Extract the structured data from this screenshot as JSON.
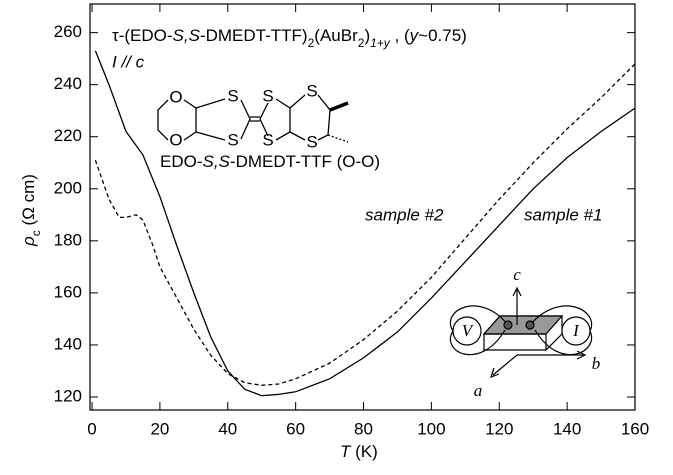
{
  "chart_data": {
    "type": "line",
    "title_parts": [
      "τ-(EDO-",
      "S,S",
      "-DMEDT-TTF)",
      "2",
      "(AuBr",
      "2",
      ")",
      "1+y",
      " , (",
      "y",
      "~0.75)"
    ],
    "annotation_current": "I // c",
    "molecule_label_parts": [
      "EDO-",
      "S,S",
      "-DMEDT-TTF (O-O)"
    ],
    "molecule_atoms": [
      "O",
      "O",
      "S",
      "S",
      "S",
      "S",
      "S",
      "S"
    ],
    "inset_labels": [
      "c",
      "V",
      "I",
      "a",
      "b"
    ],
    "y_label_parts": [
      "ρ",
      "c",
      " (Ω cm)"
    ],
    "x_label_parts": [
      "T",
      " (K)"
    ],
    "xlim": [
      -0.6,
      160
    ],
    "xticks": [
      0,
      20,
      40,
      60,
      80,
      100,
      120,
      140,
      160
    ],
    "ylim": [
      115,
      271
    ],
    "yticks": [
      120,
      140,
      160,
      180,
      200,
      220,
      240,
      260
    ],
    "series": [
      {
        "name": "sample #1",
        "color": "#000000",
        "dash": false,
        "x": [
          1,
          5,
          10,
          15,
          20,
          25,
          30,
          35,
          40,
          45,
          50,
          55,
          60,
          70,
          80,
          90,
          100,
          110,
          120,
          130,
          140,
          150,
          160
        ],
        "values": [
          253,
          240,
          222,
          213,
          197,
          178,
          160,
          143,
          130,
          123,
          120.5,
          121,
          122,
          127,
          135,
          145,
          158,
          172,
          186,
          200,
          212,
          222,
          231
        ]
      },
      {
        "name": "sample #2",
        "color": "#000000",
        "dash": true,
        "x": [
          1,
          5,
          8,
          10,
          13,
          15,
          18,
          20,
          25,
          30,
          35,
          40,
          45,
          50,
          55,
          60,
          70,
          80,
          90,
          100,
          110,
          120,
          130,
          140,
          150,
          160
        ],
        "values": [
          211,
          196,
          189,
          189,
          190,
          188,
          178,
          170,
          158,
          146,
          136,
          129,
          125.5,
          124.5,
          125,
          127,
          133,
          142,
          153,
          166,
          181,
          196,
          210,
          223,
          235,
          248
        ]
      }
    ]
  }
}
